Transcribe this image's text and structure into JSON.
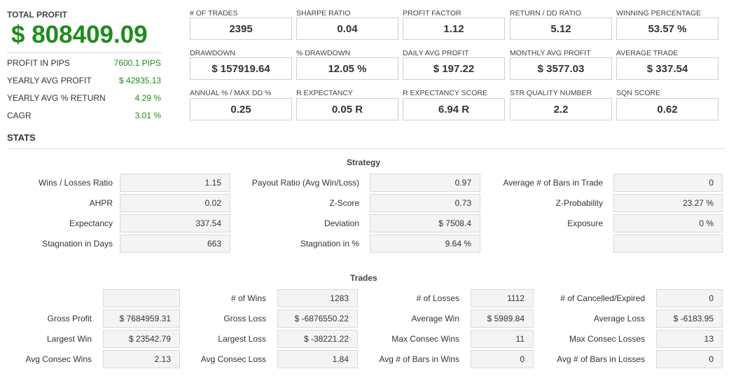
{
  "summary": {
    "total_profit_label": "TOTAL PROFIT",
    "total_profit_value": "$ 808409.09",
    "rows": [
      {
        "label": "PROFIT IN PIPS",
        "value": "7600.1 PIPS"
      },
      {
        "label": "YEARLY AVG PROFIT",
        "value": "$ 42935.13"
      },
      {
        "label": "YEARLY AVG % RETURN",
        "value": "4.29 %"
      },
      {
        "label": "CAGR",
        "value": "3.01 %"
      }
    ]
  },
  "metrics": [
    [
      {
        "label": "# OF TRADES",
        "value": "2395"
      },
      {
        "label": "SHARPE RATIO",
        "value": "0.04"
      },
      {
        "label": "PROFIT FACTOR",
        "value": "1.12"
      },
      {
        "label": "RETURN / DD RATIO",
        "value": "5.12"
      },
      {
        "label": "WINNING PERCENTAGE",
        "value": "53.57 %"
      }
    ],
    [
      {
        "label": "DRAWDOWN",
        "value": "$ 157919.64"
      },
      {
        "label": "% DRAWDOWN",
        "value": "12.05 %"
      },
      {
        "label": "DAILY AVG PROFIT",
        "value": "$ 197.22"
      },
      {
        "label": "MONTHLY AVG PROFIT",
        "value": "$ 3577.03"
      },
      {
        "label": "AVERAGE TRADE",
        "value": "$ 337.54"
      }
    ],
    [
      {
        "label": "ANNUAL % / MAX DD %",
        "value": "0.25"
      },
      {
        "label": "R EXPECTANCY",
        "value": "0.05 R"
      },
      {
        "label": "R EXPECTANCY SCORE",
        "value": "6.94 R"
      },
      {
        "label": "STR QUALITY NUMBER",
        "value": "2.2"
      },
      {
        "label": "SQN SCORE",
        "value": "0.62"
      }
    ]
  ],
  "stats": {
    "title": "STATS",
    "strategy": {
      "title": "Strategy",
      "rows": [
        [
          {
            "label": "Wins / Losses Ratio",
            "value": "1.15"
          },
          {
            "label": "Payout Ratio (Avg Win/Loss)",
            "value": "0.97"
          },
          {
            "label": "Average # of Bars in Trade",
            "value": "0"
          }
        ],
        [
          {
            "label": "AHPR",
            "value": "0.02"
          },
          {
            "label": "Z-Score",
            "value": "0.73"
          },
          {
            "label": "Z-Probability",
            "value": "23.27 %"
          }
        ],
        [
          {
            "label": "Expectancy",
            "value": "337.54"
          },
          {
            "label": "Deviation",
            "value": "$ 7508.4"
          },
          {
            "label": "Exposure",
            "value": "0 %"
          }
        ],
        [
          {
            "label": "Stagnation in Days",
            "value": "663"
          },
          {
            "label": "Stagnation in %",
            "value": "9.64 %"
          },
          {
            "label": "",
            "value": ""
          }
        ]
      ]
    },
    "trades": {
      "title": "Trades",
      "rows": [
        [
          {
            "label": "",
            "value": ""
          },
          {
            "label": "# of Wins",
            "value": "1283"
          },
          {
            "label": "# of Losses",
            "value": "1112"
          },
          {
            "label": "# of Cancelled/Expired",
            "value": "0"
          }
        ],
        [
          {
            "label": "Gross Profit",
            "value": "$ 7684959.31"
          },
          {
            "label": "Gross Loss",
            "value": "$ -6876550.22"
          },
          {
            "label": "Average Win",
            "value": "$ 5989.84"
          },
          {
            "label": "Average Loss",
            "value": "$ -6183.95"
          }
        ],
        [
          {
            "label": "Largest Win",
            "value": "$ 23542.79"
          },
          {
            "label": "Largest Loss",
            "value": "$ -38221.22"
          },
          {
            "label": "Max Consec Wins",
            "value": "11"
          },
          {
            "label": "Max Consec Losses",
            "value": "13"
          }
        ],
        [
          {
            "label": "Avg Consec Wins",
            "value": "2.13"
          },
          {
            "label": "Avg Consec Loss",
            "value": "1.84"
          },
          {
            "label": "Avg # of Bars in Wins",
            "value": "0"
          },
          {
            "label": "Avg # of Bars in Losses",
            "value": "0"
          }
        ]
      ]
    }
  }
}
